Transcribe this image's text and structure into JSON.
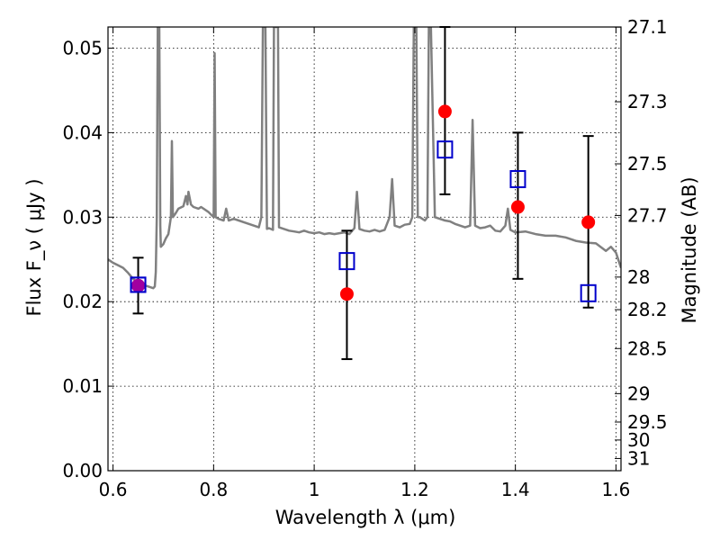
{
  "chart_data": {
    "type": "scatter",
    "xlabel": "Wavelength  λ (μm)",
    "ylabel": "Flux  F_ν  ( μJy )",
    "y2label": "Magnitude (AB)",
    "xlim": [
      0.59,
      1.61
    ],
    "ylim": [
      0.0,
      0.0525
    ],
    "grid": true,
    "x_ticks": [
      {
        "value": 0.6,
        "label": "0.6"
      },
      {
        "value": 0.8,
        "label": "0.8"
      },
      {
        "value": 1.0,
        "label": "1"
      },
      {
        "value": 1.2,
        "label": "1.2"
      },
      {
        "value": 1.4,
        "label": "1.4"
      },
      {
        "value": 1.6,
        "label": "1.6"
      }
    ],
    "y_ticks": [
      {
        "value": 0.0,
        "label": "0.00"
      },
      {
        "value": 0.01,
        "label": "0.01"
      },
      {
        "value": 0.02,
        "label": "0.02"
      },
      {
        "value": 0.03,
        "label": "0.03"
      },
      {
        "value": 0.04,
        "label": "0.04"
      },
      {
        "value": 0.05,
        "label": "0.05"
      }
    ],
    "y2_ticks": [
      {
        "value": 27.1,
        "label": "27.1"
      },
      {
        "value": 27.3,
        "label": "27.3"
      },
      {
        "value": 27.5,
        "label": "27.5"
      },
      {
        "value": 27.7,
        "label": "27.7"
      },
      {
        "value": 28.0,
        "label": "28"
      },
      {
        "value": 28.2,
        "label": "28.2"
      },
      {
        "value": 28.5,
        "label": "28.5"
      },
      {
        "value": 29.0,
        "label": "29"
      },
      {
        "value": 29.5,
        "label": "29.5"
      },
      {
        "value": 30.0,
        "label": "30"
      },
      {
        "value": 31.0,
        "label": "31"
      }
    ],
    "series": [
      {
        "kind": "line",
        "color": "#808080",
        "points": [
          [
            0.59,
            0.025
          ],
          [
            0.6,
            0.0246
          ],
          [
            0.61,
            0.0243
          ],
          [
            0.62,
            0.024
          ],
          [
            0.63,
            0.0234
          ],
          [
            0.64,
            0.0227
          ],
          [
            0.65,
            0.0222
          ],
          [
            0.66,
            0.022
          ],
          [
            0.67,
            0.0218
          ],
          [
            0.68,
            0.0216
          ],
          [
            0.683,
            0.0218
          ],
          [
            0.685,
            0.0235
          ],
          [
            0.687,
            0.03
          ],
          [
            0.689,
            0.0525
          ],
          [
            0.692,
            0.0525
          ],
          [
            0.694,
            0.029
          ],
          [
            0.695,
            0.0265
          ],
          [
            0.7,
            0.0268
          ],
          [
            0.705,
            0.0275
          ],
          [
            0.71,
            0.028
          ],
          [
            0.715,
            0.03
          ],
          [
            0.717,
            0.039
          ],
          [
            0.719,
            0.03
          ],
          [
            0.725,
            0.0305
          ],
          [
            0.73,
            0.031
          ],
          [
            0.74,
            0.0313
          ],
          [
            0.745,
            0.0325
          ],
          [
            0.748,
            0.0315
          ],
          [
            0.75,
            0.033
          ],
          [
            0.755,
            0.0315
          ],
          [
            0.76,
            0.0312
          ],
          [
            0.77,
            0.031
          ],
          [
            0.775,
            0.0312
          ],
          [
            0.78,
            0.031
          ],
          [
            0.79,
            0.0306
          ],
          [
            0.8,
            0.03
          ],
          [
            0.802,
            0.0494
          ],
          [
            0.804,
            0.03
          ],
          [
            0.81,
            0.0298
          ],
          [
            0.82,
            0.0296
          ],
          [
            0.825,
            0.031
          ],
          [
            0.83,
            0.0296
          ],
          [
            0.84,
            0.0298
          ],
          [
            0.85,
            0.0296
          ],
          [
            0.86,
            0.0294
          ],
          [
            0.87,
            0.0292
          ],
          [
            0.88,
            0.029
          ],
          [
            0.89,
            0.0288
          ],
          [
            0.895,
            0.03
          ],
          [
            0.898,
            0.0525
          ],
          [
            0.903,
            0.0525
          ],
          [
            0.906,
            0.0286
          ],
          [
            0.91,
            0.0287
          ],
          [
            0.918,
            0.0285
          ],
          [
            0.92,
            0.0525
          ],
          [
            0.925,
            0.0525
          ],
          [
            0.928,
            0.0525
          ],
          [
            0.93,
            0.0288
          ],
          [
            0.94,
            0.0286
          ],
          [
            0.95,
            0.0284
          ],
          [
            0.96,
            0.0283
          ],
          [
            0.97,
            0.0282
          ],
          [
            0.98,
            0.0284
          ],
          [
            0.99,
            0.0282
          ],
          [
            1.0,
            0.0281
          ],
          [
            1.01,
            0.0282
          ],
          [
            1.02,
            0.028
          ],
          [
            1.03,
            0.0281
          ],
          [
            1.04,
            0.028
          ],
          [
            1.05,
            0.0281
          ],
          [
            1.06,
            0.0282
          ],
          [
            1.07,
            0.028
          ],
          [
            1.08,
            0.0287
          ],
          [
            1.085,
            0.033
          ],
          [
            1.09,
            0.0286
          ],
          [
            1.1,
            0.0284
          ],
          [
            1.11,
            0.0283
          ],
          [
            1.12,
            0.0285
          ],
          [
            1.13,
            0.0283
          ],
          [
            1.14,
            0.0285
          ],
          [
            1.15,
            0.03
          ],
          [
            1.155,
            0.0345
          ],
          [
            1.16,
            0.029
          ],
          [
            1.17,
            0.0288
          ],
          [
            1.18,
            0.0291
          ],
          [
            1.19,
            0.0292
          ],
          [
            1.195,
            0.03
          ],
          [
            1.198,
            0.0525
          ],
          [
            1.203,
            0.0525
          ],
          [
            1.206,
            0.03
          ],
          [
            1.21,
            0.03
          ],
          [
            1.215,
            0.0298
          ],
          [
            1.22,
            0.0296
          ],
          [
            1.225,
            0.03
          ],
          [
            1.228,
            0.0525
          ],
          [
            1.232,
            0.0525
          ],
          [
            1.24,
            0.03
          ],
          [
            1.25,
            0.0298
          ],
          [
            1.26,
            0.0296
          ],
          [
            1.27,
            0.0295
          ],
          [
            1.28,
            0.0292
          ],
          [
            1.29,
            0.029
          ],
          [
            1.3,
            0.0288
          ],
          [
            1.31,
            0.029
          ],
          [
            1.315,
            0.0415
          ],
          [
            1.32,
            0.029
          ],
          [
            1.33,
            0.0287
          ],
          [
            1.34,
            0.0288
          ],
          [
            1.35,
            0.029
          ],
          [
            1.36,
            0.0284
          ],
          [
            1.37,
            0.0283
          ],
          [
            1.38,
            0.029
          ],
          [
            1.385,
            0.031
          ],
          [
            1.39,
            0.0285
          ],
          [
            1.4,
            0.0282
          ],
          [
            1.42,
            0.0283
          ],
          [
            1.44,
            0.028
          ],
          [
            1.46,
            0.0278
          ],
          [
            1.48,
            0.0278
          ],
          [
            1.5,
            0.0276
          ],
          [
            1.52,
            0.0272
          ],
          [
            1.54,
            0.027
          ],
          [
            1.56,
            0.0269
          ],
          [
            1.58,
            0.026
          ],
          [
            1.59,
            0.0265
          ],
          [
            1.6,
            0.0258
          ],
          [
            1.61,
            0.024
          ]
        ]
      },
      {
        "kind": "scatter",
        "marker": "circle",
        "color": "#ff0000",
        "points": [
          {
            "x": 0.65,
            "y": 0.0219,
            "yerr": [
              0.0186,
              0.0252
            ]
          },
          {
            "x": 1.065,
            "y": 0.0209,
            "yerr": [
              0.0132,
              0.0284
            ]
          },
          {
            "x": 1.26,
            "y": 0.0425,
            "yerr": [
              0.0327,
              0.0525
            ]
          },
          {
            "x": 1.405,
            "y": 0.0312,
            "yerr": [
              0.0227,
              0.04
            ]
          },
          {
            "x": 1.545,
            "y": 0.0294,
            "yerr": [
              0.0193,
              0.0396
            ]
          }
        ]
      },
      {
        "kind": "scatter",
        "marker": "square-open",
        "color": "#0000cc",
        "points": [
          {
            "x": 0.65,
            "y": 0.022
          },
          {
            "x": 1.065,
            "y": 0.0248
          },
          {
            "x": 1.26,
            "y": 0.038
          },
          {
            "x": 1.405,
            "y": 0.0345
          },
          {
            "x": 1.545,
            "y": 0.021
          }
        ]
      }
    ]
  }
}
